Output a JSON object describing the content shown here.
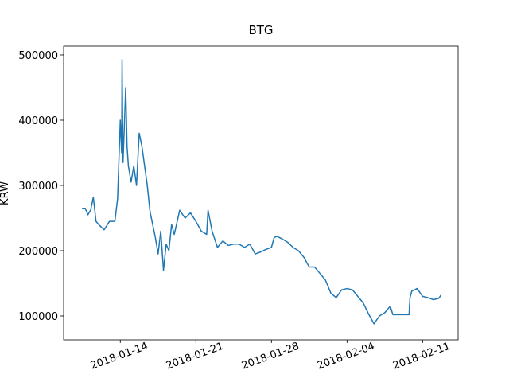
{
  "chart_data": {
    "type": "line",
    "title": "BTG",
    "y_label": "KRW",
    "x": [
      "2018-01-10T11:00",
      "2018-01-10T18:00",
      "2018-01-11T00:00",
      "2018-01-11T06:00",
      "2018-01-11T12:00",
      "2018-01-11T18:00",
      "2018-01-12T00:00",
      "2018-01-12T12:00",
      "2018-01-13T00:00",
      "2018-01-13T12:00",
      "2018-01-13T18:00",
      "2018-01-14T00:00",
      "2018-01-14T03:00",
      "2018-01-14T04:00",
      "2018-01-14T06:00",
      "2018-01-14T09:00",
      "2018-01-14T12:00",
      "2018-01-14T15:00",
      "2018-01-14T18:00",
      "2018-01-15T00:00",
      "2018-01-15T06:00",
      "2018-01-15T12:00",
      "2018-01-15T18:00",
      "2018-01-16T00:00",
      "2018-01-16T06:00",
      "2018-01-16T12:00",
      "2018-01-16T18:00",
      "2018-01-17T00:00",
      "2018-01-17T06:00",
      "2018-01-17T12:00",
      "2018-01-17T18:00",
      "2018-01-18T00:00",
      "2018-01-18T06:00",
      "2018-01-18T12:00",
      "2018-01-18T18:00",
      "2018-01-19T00:00",
      "2018-01-19T12:00",
      "2018-01-20T00:00",
      "2018-01-20T12:00",
      "2018-01-21T00:00",
      "2018-01-21T12:00",
      "2018-01-22T00:00",
      "2018-01-22T03:00",
      "2018-01-22T12:00",
      "2018-01-23T00:00",
      "2018-01-23T12:00",
      "2018-01-24T00:00",
      "2018-01-24T12:00",
      "2018-01-25T00:00",
      "2018-01-25T12:00",
      "2018-01-26T00:00",
      "2018-01-26T12:00",
      "2018-01-27T00:00",
      "2018-01-27T12:00",
      "2018-01-28T00:00",
      "2018-01-28T06:00",
      "2018-01-28T12:00",
      "2018-01-29T00:00",
      "2018-01-29T12:00",
      "2018-01-30T00:00",
      "2018-01-30T12:00",
      "2018-01-31T00:00",
      "2018-01-31T12:00",
      "2018-02-01T00:00",
      "2018-02-01T12:00",
      "2018-02-02T00:00",
      "2018-02-02T12:00",
      "2018-02-03T00:00",
      "2018-02-03T12:00",
      "2018-02-04T00:00",
      "2018-02-04T12:00",
      "2018-02-05T00:00",
      "2018-02-05T12:00",
      "2018-02-06T00:00",
      "2018-02-06T12:00",
      "2018-02-07T00:00",
      "2018-02-07T12:00",
      "2018-02-08T00:00",
      "2018-02-08T06:00",
      "2018-02-09T00:00",
      "2018-02-09T18:00",
      "2018-02-09T20:00",
      "2018-02-10T00:00",
      "2018-02-10T12:00",
      "2018-02-11T00:00",
      "2018-02-11T12:00",
      "2018-02-12T00:00",
      "2018-02-12T12:00",
      "2018-02-12T17:00"
    ],
    "series": [
      {
        "name": "BTG",
        "color": "#1f77b4",
        "values": [
          265000,
          265000,
          255000,
          262000,
          282000,
          245000,
          240000,
          232000,
          245000,
          245000,
          280000,
          400000,
          350000,
          493000,
          335000,
          390000,
          450000,
          360000,
          330000,
          305000,
          330000,
          300000,
          380000,
          360000,
          330000,
          300000,
          260000,
          240000,
          220000,
          195000,
          230000,
          170000,
          210000,
          200000,
          240000,
          225000,
          262000,
          250000,
          258000,
          245000,
          230000,
          225000,
          262000,
          230000,
          205000,
          215000,
          208000,
          210000,
          210000,
          205000,
          210000,
          195000,
          198000,
          202000,
          205000,
          220000,
          222000,
          218000,
          213000,
          205000,
          200000,
          190000,
          175000,
          175000,
          165000,
          155000,
          135000,
          128000,
          140000,
          142000,
          140000,
          130000,
          120000,
          103000,
          88000,
          100000,
          105000,
          115000,
          102000,
          102000,
          102000,
          128000,
          138000,
          142000,
          130000,
          128000,
          125000,
          127000,
          132000
        ]
      }
    ],
    "xlim": [
      "2018-01-08T18:00",
      "2018-02-14T07:00"
    ],
    "xticks": [
      "2018-01-14",
      "2018-01-21",
      "2018-01-28",
      "2018-02-04",
      "2018-02-11"
    ],
    "ylim": [
      63400,
      513400
    ],
    "yticks": [
      100000,
      200000,
      300000,
      400000,
      500000
    ]
  }
}
